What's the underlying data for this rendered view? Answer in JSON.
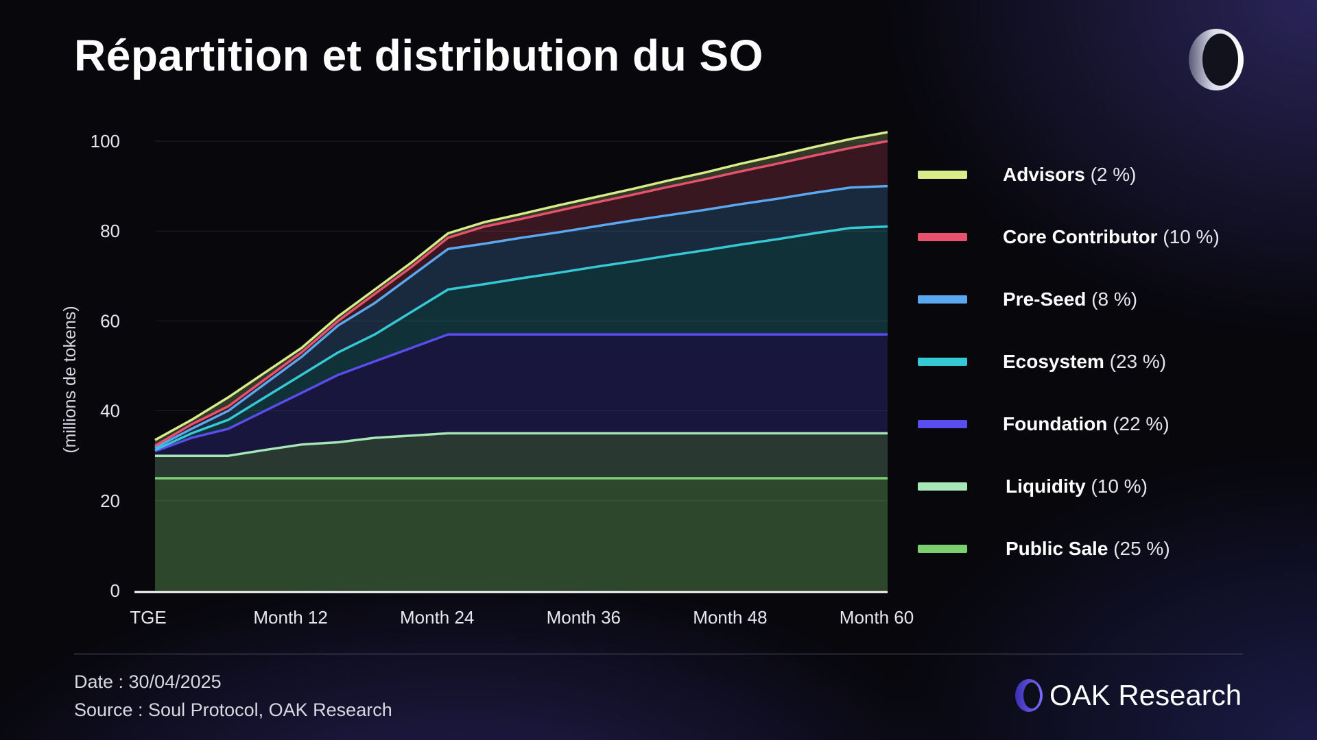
{
  "title": "Répartition et distribution du SO",
  "footer": {
    "date": "Date : 30/04/2025",
    "source": "Source : Soul Protocol, OAK Research"
  },
  "brand": {
    "name_a": "OAK",
    "name_b": "Research"
  },
  "logo_icon": "oak-ring-icon",
  "legend": [
    {
      "name": "Advisors",
      "pct": "(2 %)",
      "color": "#d8ec8a"
    },
    {
      "name": "Core Contributor",
      "pct": "(10 %)",
      "color": "#e8506e"
    },
    {
      "name": "Pre-Seed",
      "pct": "(8 %)",
      "color": "#5aa8f0"
    },
    {
      "name": "Ecosystem",
      "pct": "(23 %)",
      "color": "#35c9d6"
    },
    {
      "name": "Foundation",
      "pct": "(22 %)",
      "color": "#5a4df0"
    },
    {
      "name": "Liquidity",
      "pct": "(10 %)",
      "color": "#a6e6b8"
    },
    {
      "name": "Public Sale",
      "pct": "(25 %)",
      "color": "#7ccf70"
    }
  ],
  "chart_data": {
    "type": "area",
    "stacked": true,
    "title": "Répartition et distribution du SO",
    "ylabel": "(millions de tokens)",
    "xlabel": "",
    "ylim": [
      0,
      100
    ],
    "yticks": [
      0,
      20,
      40,
      60,
      80,
      100
    ],
    "xlim": [
      0,
      60
    ],
    "xticks": [
      {
        "value": 0,
        "label": "TGE"
      },
      {
        "value": 12,
        "label": "Month 12"
      },
      {
        "value": 24,
        "label": "Month 24"
      },
      {
        "value": 36,
        "label": "Month 36"
      },
      {
        "value": 48,
        "label": "Month 48"
      },
      {
        "value": 60,
        "label": "Month 60"
      }
    ],
    "x": [
      0,
      3,
      6,
      9,
      12,
      15,
      18,
      21,
      24,
      27,
      30,
      33,
      36,
      39,
      42,
      45,
      48,
      51,
      54,
      57,
      60
    ],
    "series": [
      {
        "name": "Public Sale",
        "color": "#7ccf70",
        "cumulative": [
          25,
          25,
          25,
          25,
          25,
          25,
          25,
          25,
          25,
          25,
          25,
          25,
          25,
          25,
          25,
          25,
          25,
          25,
          25,
          25,
          25
        ]
      },
      {
        "name": "Liquidity",
        "color": "#a6e6b8",
        "cumulative": [
          30,
          30,
          30,
          31.3,
          32.5,
          33,
          34,
          34.5,
          35,
          35,
          35,
          35,
          35,
          35,
          35,
          35,
          35,
          35,
          35,
          35,
          35
        ]
      },
      {
        "name": "Foundation",
        "color": "#5a4df0",
        "cumulative": [
          31,
          34,
          36,
          40,
          44,
          48,
          51,
          54,
          57,
          57,
          57,
          57,
          57,
          57,
          57,
          57,
          57,
          57,
          57,
          57,
          57
        ]
      },
      {
        "name": "Ecosystem",
        "color": "#35c9d6",
        "cumulative": [
          31.3,
          35,
          38,
          43,
          48,
          53,
          57,
          62,
          67,
          68.2,
          69.5,
          70.7,
          72,
          73.2,
          74.5,
          75.7,
          77,
          78.2,
          79.5,
          80.7,
          81
        ]
      },
      {
        "name": "Pre-Seed",
        "color": "#5aa8f0",
        "cumulative": [
          31.8,
          36,
          40,
          46,
          52,
          59,
          64,
          70,
          76,
          77.2,
          78.5,
          79.7,
          81,
          82.3,
          83.5,
          84.7,
          86,
          87.2,
          88.5,
          89.7,
          90
        ]
      },
      {
        "name": "Core Contributor",
        "color": "#e8506e",
        "cumulative": [
          32.2,
          37,
          41,
          47,
          53,
          60,
          66,
          72,
          78.5,
          81,
          82.7,
          84.5,
          86.3,
          88,
          89.8,
          91.5,
          93.3,
          95,
          96.8,
          98.5,
          100
        ]
      },
      {
        "name": "Advisors",
        "color": "#d8ec8a",
        "cumulative": [
          33.5,
          38,
          43,
          48.5,
          54,
          61,
          67,
          73,
          79.5,
          82,
          83.8,
          85.7,
          87.5,
          89.3,
          91.2,
          93,
          95,
          96.8,
          98.7,
          100.5,
          102
        ]
      }
    ]
  }
}
